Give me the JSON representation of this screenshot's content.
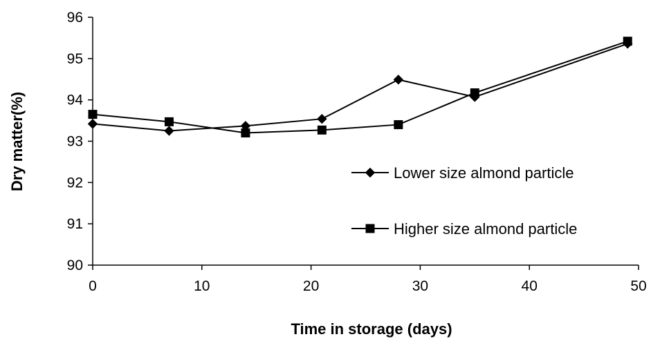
{
  "chart_data": {
    "type": "line",
    "title": "",
    "xlabel": "Time in storage (days)",
    "ylabel": "Dry matter(%)",
    "xlim": [
      0,
      50
    ],
    "ylim": [
      90,
      96
    ],
    "x_ticks": [
      0,
      10,
      20,
      30,
      40,
      50
    ],
    "y_ticks": [
      90,
      91,
      92,
      93,
      94,
      95,
      96
    ],
    "grid": false,
    "legend_position": "right",
    "series": [
      {
        "name": "Lower size almond particle",
        "marker": "diamond",
        "color": "#000000",
        "x": [
          0,
          7,
          14,
          21,
          28,
          35,
          49
        ],
        "y": [
          93.42,
          93.25,
          93.37,
          93.54,
          94.49,
          94.07,
          95.36
        ]
      },
      {
        "name": "Higher size almond particle",
        "marker": "square",
        "color": "#000000",
        "x": [
          0,
          7,
          14,
          21,
          28,
          35,
          49
        ],
        "y": [
          93.65,
          93.47,
          93.2,
          93.27,
          93.4,
          94.17,
          95.42
        ]
      }
    ]
  }
}
